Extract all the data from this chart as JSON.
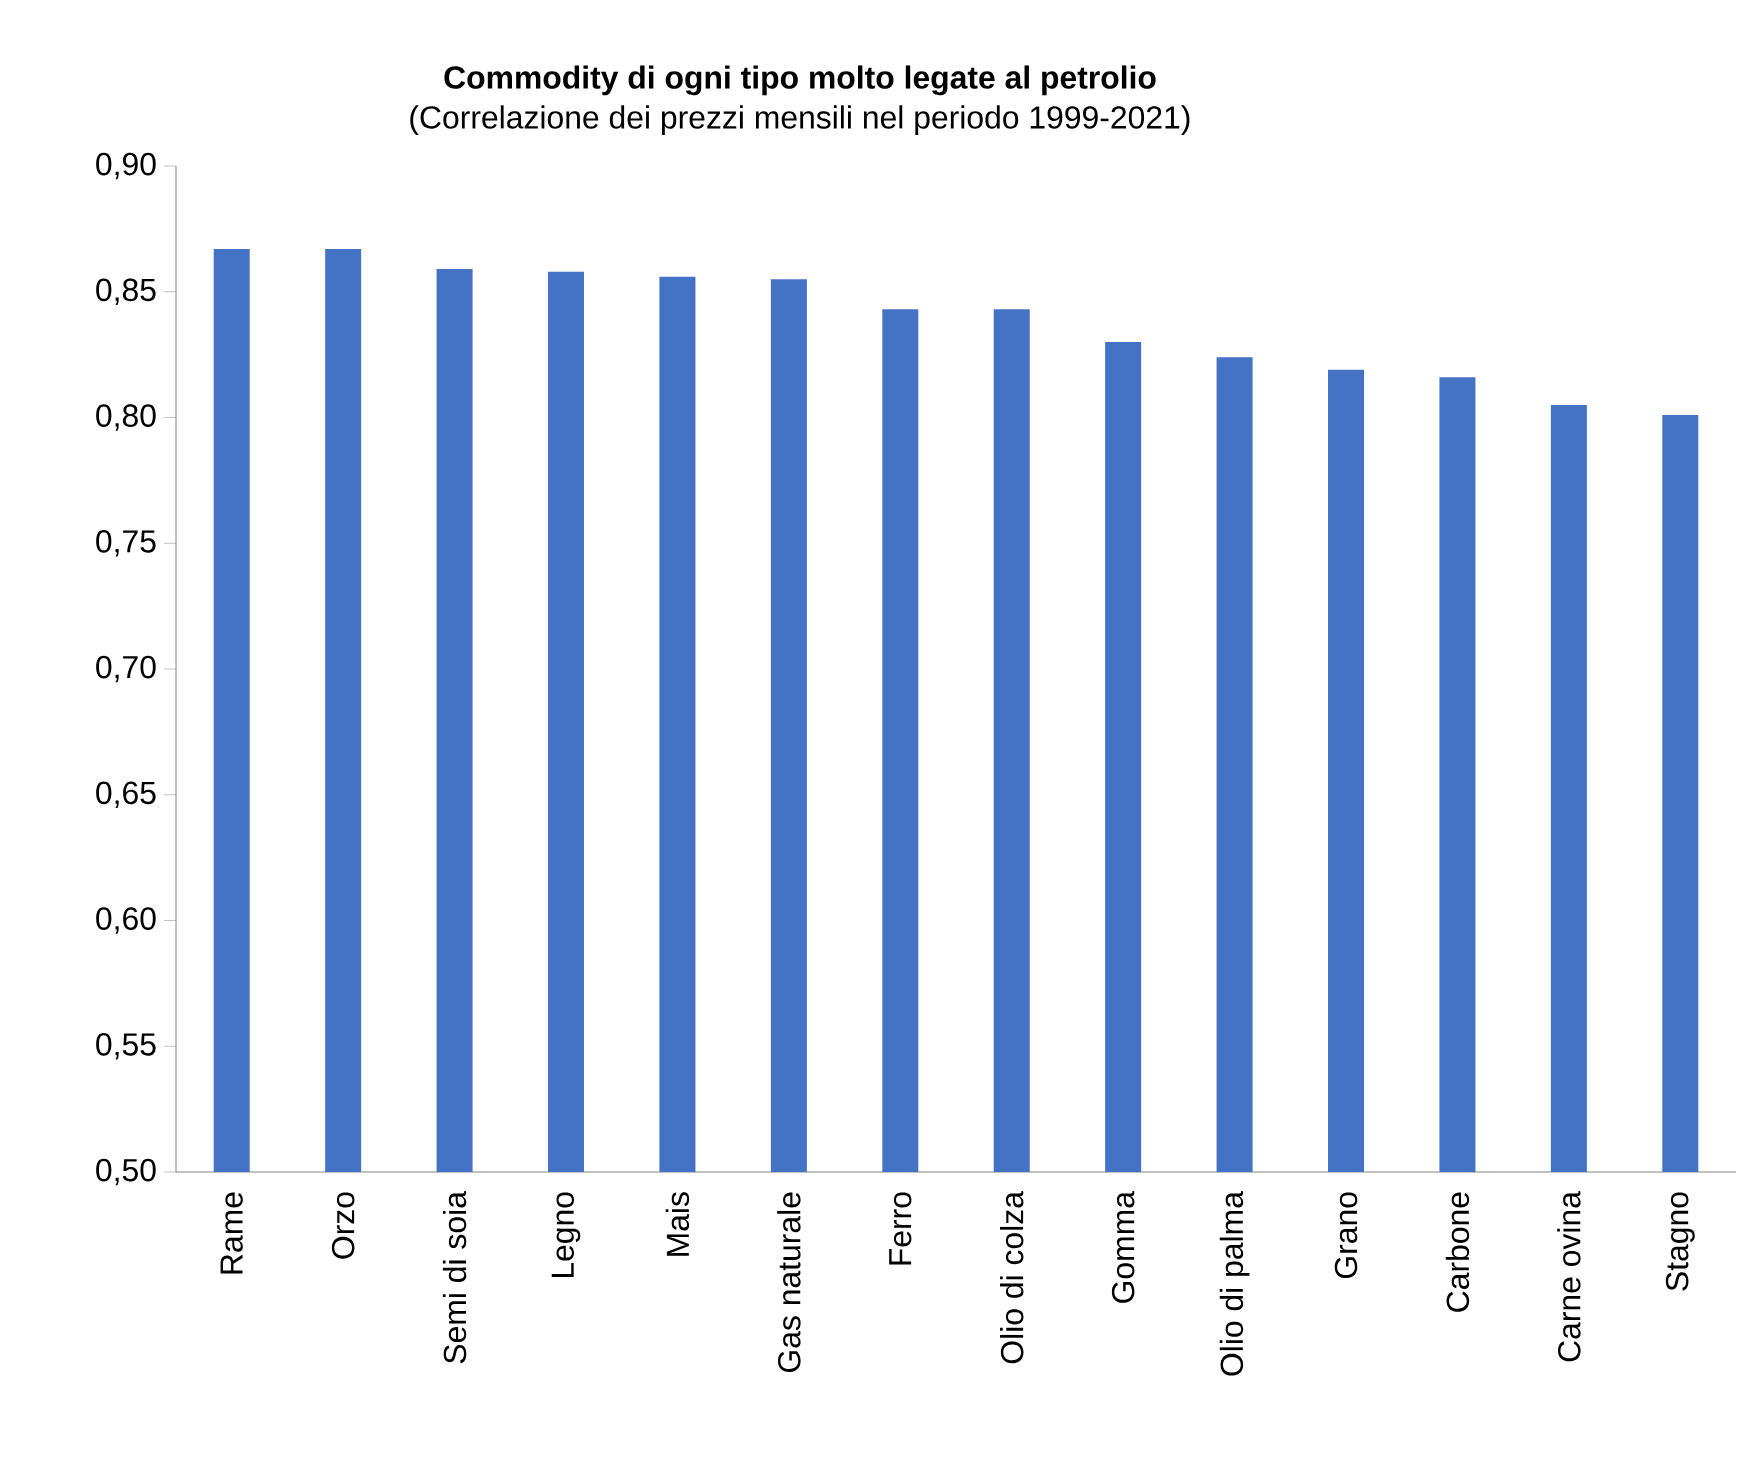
{
  "chart_data": {
    "type": "bar",
    "title": "Commodity di ogni tipo molto legate al petrolio",
    "subtitle": "(Correlazione dei prezzi mensili nel periodo 1999-2021)",
    "categories": [
      "Rame",
      "Orzo",
      "Semi di soia",
      "Legno",
      "Mais",
      "Gas naturale",
      "Ferro",
      "Olio di colza",
      "Gomma",
      "Olio di palma",
      "Grano",
      "Carbone",
      "Carne ovina",
      "Stagno"
    ],
    "values": [
      0.867,
      0.867,
      0.859,
      0.858,
      0.856,
      0.855,
      0.843,
      0.843,
      0.83,
      0.824,
      0.819,
      0.816,
      0.805,
      0.801
    ],
    "color": "#4472c4",
    "ylim": [
      0.5,
      0.9
    ],
    "yticks": [
      {
        "value": 0.5,
        "label": "0,50"
      },
      {
        "value": 0.55,
        "label": "0,55"
      },
      {
        "value": 0.6,
        "label": "0,60"
      },
      {
        "value": 0.65,
        "label": "0,65"
      },
      {
        "value": 0.7,
        "label": "0,70"
      },
      {
        "value": 0.75,
        "label": "0,75"
      },
      {
        "value": 0.8,
        "label": "0,80"
      },
      {
        "value": 0.85,
        "label": "0,85"
      },
      {
        "value": 0.9,
        "label": "0,90"
      }
    ]
  }
}
